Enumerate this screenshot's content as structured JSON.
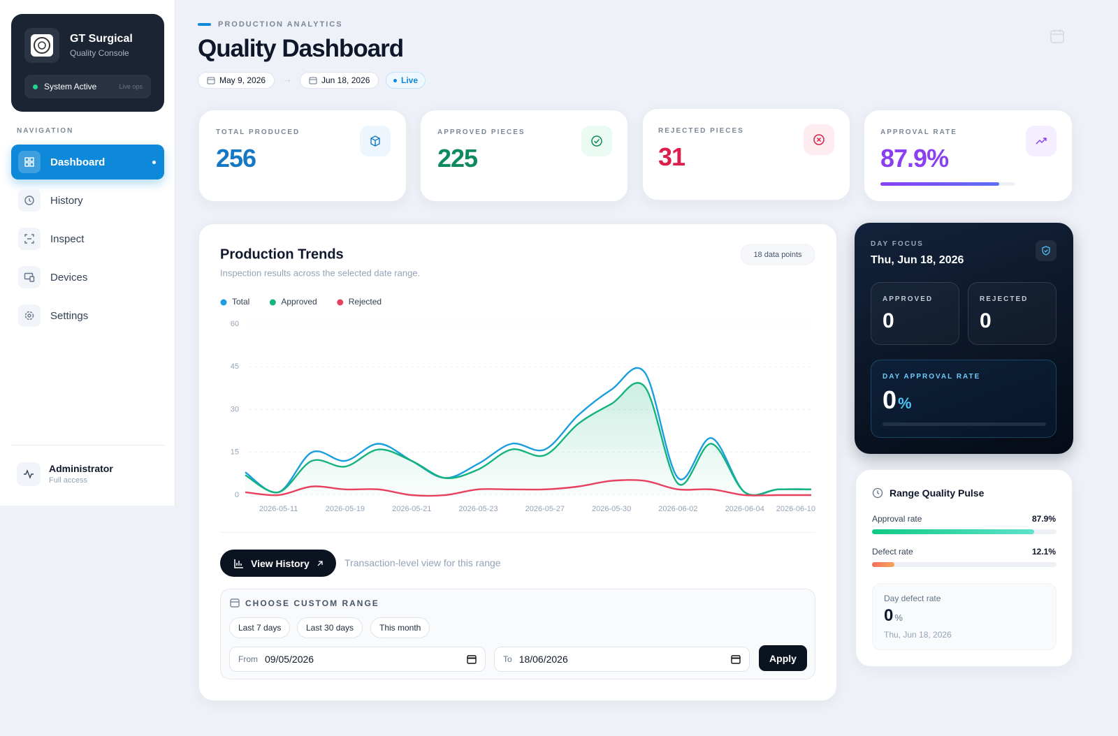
{
  "sidebar": {
    "brand": {
      "name": "GT Surgical",
      "subtitle": "Quality Console"
    },
    "status": {
      "label": "System Active",
      "note": "Live ops"
    },
    "nav_heading": "NAVIGATION",
    "nav": [
      "Dashboard",
      "History",
      "Inspect",
      "Devices",
      "Settings"
    ],
    "user": {
      "name": "Administrator",
      "role": "Full access"
    }
  },
  "header": {
    "eyebrow": "PRODUCTION ANALYTICS",
    "title": "Quality Dashboard",
    "date_from": "May 9, 2026",
    "date_to": "Jun 18, 2026",
    "live": "Live"
  },
  "kpis": [
    {
      "label": "TOTAL PRODUCED",
      "value": 256
    },
    {
      "label": "APPROVED PIECES",
      "value": 225
    },
    {
      "label": "REJECTED PIECES",
      "value": 31
    },
    {
      "label": "APPROVAL RATE",
      "value": 87.9,
      "value_label": "87.9%"
    }
  ],
  "chart_data": {
    "type": "line",
    "title": "Production Trends",
    "subtitle": "Inspection results across the selected date range.",
    "badge": "18 data points",
    "categories": [
      null,
      "2026-05-11",
      null,
      "2026-05-19",
      null,
      "2026-05-21",
      null,
      "2026-05-23",
      null,
      "2026-05-27",
      null,
      "2026-05-30",
      null,
      "2026-06-02",
      null,
      "2026-06-04",
      null,
      "2026-06-10"
    ],
    "series": [
      {
        "name": "Total",
        "color": "#1a9ee0",
        "values": [
          8,
          1,
          15,
          12,
          18,
          12,
          6,
          11,
          18,
          16,
          28,
          37,
          43,
          6,
          20,
          1,
          2,
          2
        ]
      },
      {
        "name": "Approved",
        "color": "#14b37d",
        "values": [
          7,
          1,
          12,
          10,
          16,
          12,
          6,
          9,
          16,
          14,
          25,
          32,
          38,
          4,
          18,
          1,
          2,
          2
        ]
      },
      {
        "name": "Rejected",
        "color": "#e8405f",
        "values": [
          1,
          0,
          3,
          2,
          2,
          0,
          0,
          2,
          2,
          2,
          3,
          5,
          5,
          2,
          2,
          0,
          0,
          0
        ]
      }
    ],
    "ylim": [
      0,
      60
    ],
    "yticks": [
      0,
      15,
      30,
      45,
      60
    ],
    "grid": true
  },
  "actions": {
    "view_history": "View History",
    "note": "Transaction-level view for this range"
  },
  "custom_range": {
    "title": "CHOOSE CUSTOM RANGE",
    "presets": [
      "Last 7 days",
      "Last 30 days",
      "This month"
    ],
    "from_label": "From",
    "from_value": "09/05/2026",
    "to_label": "To",
    "to_value": "18/06/2026",
    "apply": "Apply"
  },
  "day_focus": {
    "label": "DAY FOCUS",
    "date": "Thu, Jun 18, 2026",
    "approved_label": "APPROVED",
    "approved": 0,
    "rejected_label": "REJECTED",
    "rejected": 0,
    "rate_label": "DAY APPROVAL RATE",
    "rate": 0,
    "rate_unit": "%"
  },
  "pulse": {
    "title": "Range Quality Pulse",
    "approval_label": "Approval rate",
    "approval": 87.9,
    "approval_label_value": "87.9%",
    "defect_label": "Defect rate",
    "defect": 12.1,
    "defect_label_value": "12.1%",
    "day_defect_label": "Day defect rate",
    "day_defect": 0,
    "day_defect_unit": "%",
    "day_defect_date": "Thu, Jun 18, 2026"
  }
}
